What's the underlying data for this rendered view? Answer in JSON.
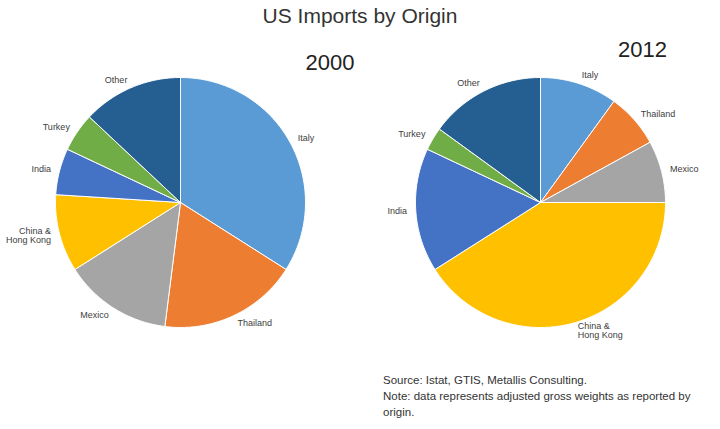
{
  "title": "US Imports by Origin",
  "annotations": [
    "Source: Istat, GTIS, Metallis Consulting.",
    "Note: data represents adjusted gross weights as reported by origin."
  ],
  "chart_data": [
    {
      "type": "pie",
      "title": "2000",
      "categories": [
        "Italy",
        "Thailand",
        "Mexico",
        "China & Hong Kong",
        "India",
        "Turkey",
        "Other"
      ],
      "values": [
        34,
        18,
        14,
        10,
        6,
        5,
        13
      ],
      "colors": [
        "#5b9bd5",
        "#ed7d31",
        "#a5a5a5",
        "#ffc000",
        "#4472c4",
        "#70ad47",
        "#255e91"
      ]
    },
    {
      "type": "pie",
      "title": "2012",
      "categories": [
        "Italy",
        "Thailand",
        "Mexico",
        "China & Hong Kong",
        "India",
        "Turkey",
        "Other"
      ],
      "values": [
        10,
        7,
        8,
        41,
        16,
        3,
        15
      ],
      "colors": [
        "#5b9bd5",
        "#ed7d31",
        "#a5a5a5",
        "#ffc000",
        "#4472c4",
        "#70ad47",
        "#255e91"
      ]
    }
  ]
}
